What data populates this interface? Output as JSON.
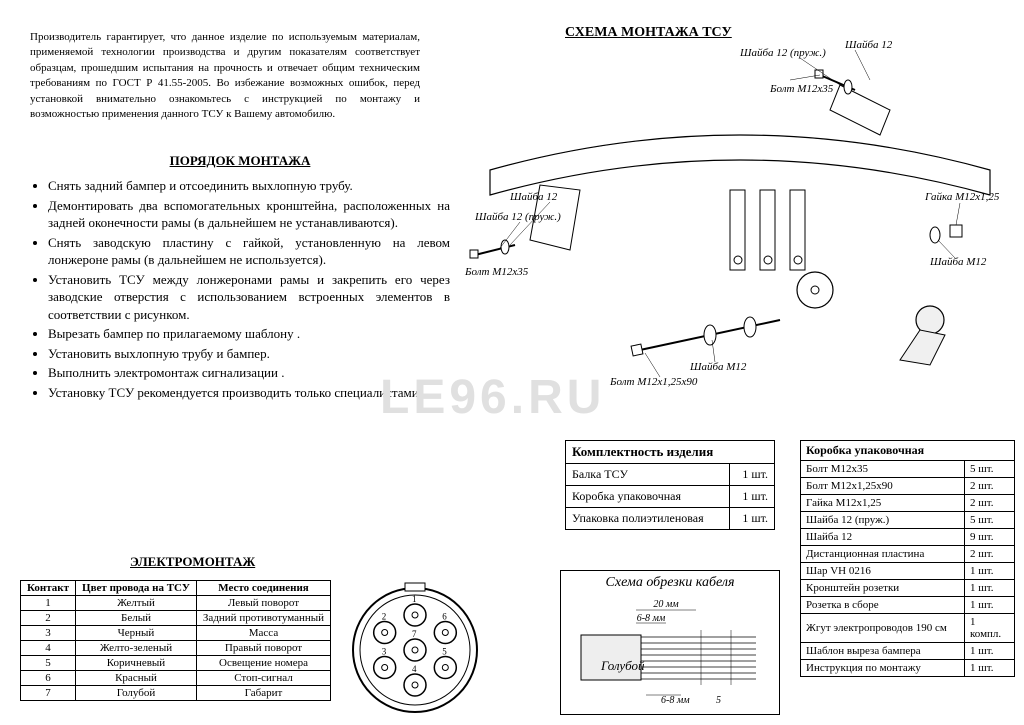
{
  "intro": "Производитель гарантирует, что данное изделие по используемым материалам, применяемой технологии производства и другим показателям соответствует образцам, прошедшим испытания на прочность и отвечает общим техническим требованиям по ГОСТ Р 41.55-2005. Во избежание возможных ошибок, перед установкой внимательно ознакомьтесь с инструкцией по монтажу и возможностью применения данного ТСУ к Вашему автомобилю.",
  "porjadok_heading": "ПОРЯДОК МОНТАЖА",
  "porjadok": [
    "Снять задний бампер и отсоединить выхлопную трубу.",
    "Демонтировать два вспомогательных кронштейна, расположенных на задней оконечности рамы (в дальнейшем не устанавливаются).",
    "Снять заводскую пластину с гайкой, установленную на левом лонжероне рамы (в дальнейшем не используется).",
    "Установить ТСУ между лонжеронами рамы и закрепить его через заводские отверстия с использованием встроенных элементов в соответствии с рисунком.",
    "Вырезать бампер по прилагаемому шаблону .",
    "Установить выхлопную трубу и бампер.",
    "  Выполнить электромонтаж сигнализации .",
    "Установку ТСУ рекомендуется производить только специалистами."
  ],
  "schema_title": "СХЕМА МОНТАЖА ТСУ",
  "diagram_labels": {
    "shaiba12_top": "Шайба 12",
    "shaiba12_pruzh": "Шайба 12 (пруж.)",
    "bolt_m12x35": "Болт М12х35",
    "shaiba12_left": "Шайба 12",
    "shaiba12_pruzh_left": "Шайба 12 (пруж.)",
    "bolt_m12x35_left": "Болт М12х35",
    "gaika_m12": "Гайка М12х1,25",
    "shaiba_m12": "Шайба М12",
    "shaiba_m12_b": "Шайба М12",
    "bolt_long": "Болт М12х1,25х90"
  },
  "watermark": "LE96.RU",
  "elektro_heading": "ЭЛЕКТРОМОНТАЖ",
  "elektro_headers": [
    "Контакт",
    "Цвет провода на ТСУ",
    "Место соединения"
  ],
  "elektro_rows": [
    [
      "1",
      "Желтый",
      "Левый поворот"
    ],
    [
      "2",
      "Белый",
      "Задний противотуманный"
    ],
    [
      "3",
      "Черный",
      "Масса"
    ],
    [
      "4",
      "Желто-зеленый",
      "Правый поворот"
    ],
    [
      "5",
      "Коричневый",
      "Освещение номера"
    ],
    [
      "6",
      "Красный",
      "Стоп-сигнал"
    ],
    [
      "7",
      "Голубой",
      "Габарит"
    ]
  ],
  "komplekt_header": "Комплектность изделия",
  "komplekt_rows": [
    [
      "Балка ТСУ",
      "1 шт."
    ],
    [
      "Коробка упаковочная",
      "1 шт."
    ],
    [
      "Упаковка полиэтиленовая",
      "1 шт."
    ]
  ],
  "korobka_header": "Коробка упаковочная",
  "korobka_rows": [
    [
      "Болт М12х35",
      "5 шт."
    ],
    [
      "Болт М12х1,25х90",
      "2 шт."
    ],
    [
      "Гайка М12х1,25",
      "2 шт."
    ],
    [
      "Шайба 12  (пруж.)",
      "5 шт."
    ],
    [
      "Шайба 12",
      "9 шт."
    ],
    [
      "Дистанционная пластина",
      "2 шт."
    ],
    [
      "Шар VH 0216",
      "1 шт."
    ],
    [
      "Кронштейн розетки",
      "1 шт."
    ],
    [
      "Розетка в сборе",
      "1 шт."
    ],
    [
      "Жгут электропроводов 190 см",
      "1 компл."
    ],
    [
      "Шаблон выреза бампера",
      "1 шт."
    ],
    [
      "Инструкция по монтажу",
      "1 шт."
    ]
  ],
  "cable_title": "Схема обрезки кабеля",
  "cable_labels": {
    "d20": "20 мм",
    "d68a": "6-8 мм",
    "d68b": "6-8 мм",
    "d5": "5",
    "blue": "Голубой"
  },
  "colors": {
    "line": "#000000",
    "bg": "#ffffff",
    "watermark": "#e0e0e0"
  }
}
